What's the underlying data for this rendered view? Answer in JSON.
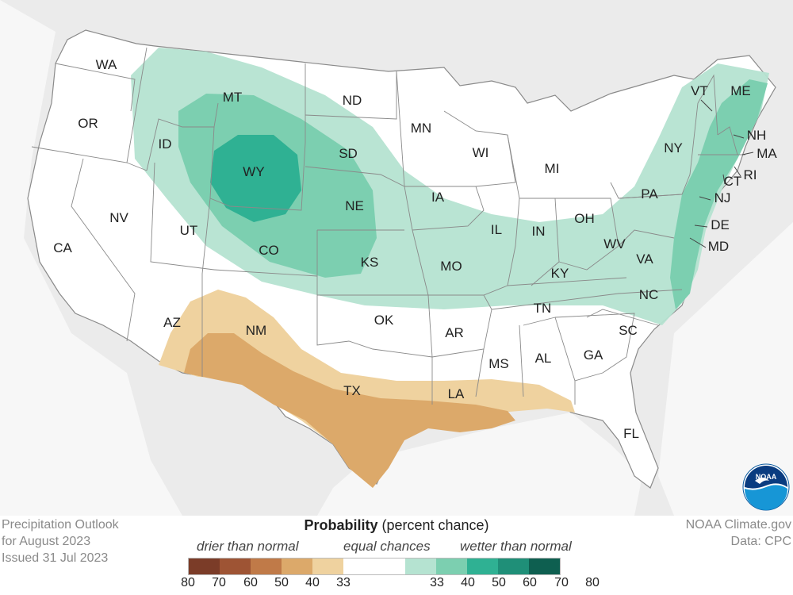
{
  "title_lines": {
    "line1": "Precipitation Outlook",
    "line2": "for August 2023",
    "line3": "Issued 31 Jul 2023"
  },
  "credits": {
    "line1": "NOAA Climate.gov",
    "line2": "Data: CPC"
  },
  "legend": {
    "title_bold": "Probability",
    "title_rest": " (percent chance)",
    "drier_label": "drier than normal",
    "equal_label": "equal chances",
    "wetter_label": "wetter than normal",
    "colors": [
      "#7b3c28",
      "#9e5434",
      "#c07a48",
      "#dca96a",
      "#efd29f",
      "#ffffff",
      "#ffffff",
      "#b5e3d1",
      "#7ccfb0",
      "#2fb193",
      "#1f8f78",
      "#0e5f50"
    ],
    "ticks": [
      "80",
      "70",
      "60",
      "50",
      "40",
      "33",
      "33",
      "40",
      "50",
      "60",
      "70",
      "80"
    ]
  },
  "states": [
    "WA",
    "OR",
    "CA",
    "ID",
    "NV",
    "MT",
    "WY",
    "UT",
    "AZ",
    "CO",
    "NM",
    "ND",
    "SD",
    "NE",
    "KS",
    "OK",
    "TX",
    "MN",
    "IA",
    "MO",
    "AR",
    "LA",
    "WI",
    "IL",
    "MI",
    "IN",
    "OH",
    "KY",
    "TN",
    "MS",
    "AL",
    "GA",
    "FL",
    "SC",
    "NC",
    "VA",
    "WV",
    "PA",
    "NY",
    "VT",
    "ME",
    "NH",
    "MA",
    "RI",
    "CT",
    "NJ",
    "DE",
    "MD"
  ],
  "logo_text": "NOAA"
}
